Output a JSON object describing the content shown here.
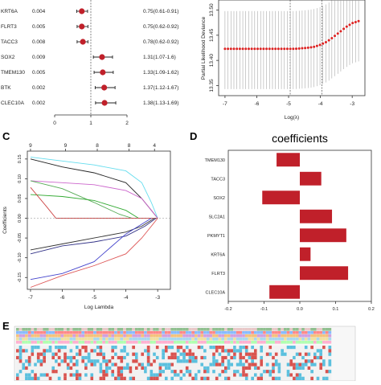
{
  "chart_data": [
    {
      "panel": "",
      "type": "scatter",
      "rows": [
        {
          "gene": "KRT6A",
          "p": "0.004",
          "hr": 0.75,
          "lo": 0.61,
          "hi": 0.91,
          "ci_text": "0.75(0.61-0.91)"
        },
        {
          "gene": "FLRT3",
          "p": "0.005",
          "hr": 0.75,
          "lo": 0.62,
          "hi": 0.92,
          "ci_text": "0.75(0.62-0.92)"
        },
        {
          "gene": "TACC3",
          "p": "0.008",
          "hr": 0.78,
          "lo": 0.62,
          "hi": 0.92,
          "ci_text": "0.78(0.62-0.92)"
        },
        {
          "gene": "SOX2",
          "p": "0.009",
          "hr": 1.31,
          "lo": 1.07,
          "hi": 1.6,
          "ci_text": "1.31(1.07-1.6)"
        },
        {
          "gene": "TMEM130",
          "p": "0.005",
          "hr": 1.33,
          "lo": 1.09,
          "hi": 1.62,
          "ci_text": "1.33(1.09-1.62)"
        },
        {
          "gene": "BTK",
          "p": "0.002",
          "hr": 1.37,
          "lo": 1.12,
          "hi": 1.67,
          "ci_text": "1.37(1.12-1.67)"
        },
        {
          "gene": "CLEC10A",
          "p": "0.002",
          "hr": 1.38,
          "lo": 1.13,
          "hi": 1.69,
          "ci_text": "1.38(1.13-1.69)"
        }
      ],
      "x_ticks": [
        "0",
        "1",
        "2"
      ],
      "xlim": [
        0,
        2
      ]
    },
    {
      "panel": "",
      "type": "line",
      "xlabel": "Log(λ)",
      "ylabel": "Partial Likelihood Deviance",
      "x_ticks": [
        "-7",
        "-6",
        "-5",
        "-4",
        "-3"
      ],
      "y_ticks": [
        "13.35",
        "13.40",
        "13.45",
        "13.50"
      ],
      "xlim": [
        -7.2,
        -2.6
      ],
      "ylim": [
        13.33,
        13.52
      ],
      "x": [
        -7.0,
        -6.8,
        -6.6,
        -6.4,
        -6.2,
        -6.0,
        -5.8,
        -5.6,
        -5.4,
        -5.2,
        -5.0,
        -4.8,
        -4.6,
        -4.4,
        -4.2,
        -4.0,
        -3.8,
        -3.6,
        -3.4,
        -3.2,
        -3.0,
        -2.8
      ],
      "y": [
        13.423,
        13.423,
        13.423,
        13.423,
        13.423,
        13.423,
        13.423,
        13.423,
        13.423,
        13.423,
        13.423,
        13.423,
        13.424,
        13.425,
        13.427,
        13.431,
        13.437,
        13.446,
        13.456,
        13.466,
        13.474,
        13.478
      ],
      "lambda_lines": [
        -4.95,
        -3.95
      ]
    },
    {
      "panel": "C",
      "type": "line",
      "xlabel": "Log Lambda",
      "ylabel": "Coefficients",
      "top_ticks": [
        "9",
        "9",
        "8",
        "8",
        "4"
      ],
      "x_ticks": [
        "-7",
        "-6",
        "-5",
        "-4",
        "-3"
      ],
      "y_ticks": [
        "-0.15",
        "-0.10",
        "-0.05",
        "0.00",
        "0.05",
        "0.10",
        "0.15"
      ],
      "xlim": [
        -7.1,
        -2.6
      ],
      "ylim": [
        -0.18,
        0.17
      ],
      "series": [
        {
          "color": "#222222",
          "values": [
            [
              -7,
              0.15
            ],
            [
              -6,
              0.13
            ],
            [
              -5,
              0.115
            ],
            [
              -4,
              0.09
            ],
            [
              -3.5,
              0.05
            ],
            [
              -3.2,
              0.02
            ],
            [
              -3,
              0
            ]
          ]
        },
        {
          "color": "#66ddee",
          "values": [
            [
              -7,
              0.155
            ],
            [
              -6,
              0.145
            ],
            [
              -5,
              0.135
            ],
            [
              -4,
              0.12
            ],
            [
              -3.5,
              0.09
            ],
            [
              -3.2,
              0.04
            ],
            [
              -3,
              0
            ]
          ]
        },
        {
          "color": "#cc66cc",
          "values": [
            [
              -7,
              0.095
            ],
            [
              -6,
              0.09
            ],
            [
              -5,
              0.085
            ],
            [
              -4,
              0.07
            ],
            [
              -3.5,
              0.05
            ],
            [
              -3.2,
              0.02
            ],
            [
              -3,
              0
            ]
          ]
        },
        {
          "color": "#55aa55",
          "values": [
            [
              -7,
              0.095
            ],
            [
              -6,
              0.075
            ],
            [
              -5,
              0.04
            ],
            [
              -4.2,
              0.01
            ],
            [
              -3.8,
              0
            ]
          ]
        },
        {
          "color": "#33aa33",
          "values": [
            [
              -7,
              0.06
            ],
            [
              -6,
              0.055
            ],
            [
              -5,
              0.045
            ],
            [
              -4,
              0.02
            ],
            [
              -3.6,
              0
            ]
          ]
        },
        {
          "color": "#cc4444",
          "values": [
            [
              -7,
              0.078
            ],
            [
              -6.5,
              0.03
            ],
            [
              -6.2,
              0
            ],
            [
              -3,
              0
            ]
          ]
        },
        {
          "color": "#333333",
          "values": [
            [
              -7,
              -0.08
            ],
            [
              -6,
              -0.065
            ],
            [
              -5,
              -0.05
            ],
            [
              -4,
              -0.035
            ],
            [
              -3.5,
              -0.02
            ],
            [
              -3.1,
              0
            ]
          ]
        },
        {
          "color": "#333388",
          "values": [
            [
              -7,
              -0.09
            ],
            [
              -6,
              -0.07
            ],
            [
              -5,
              -0.06
            ],
            [
              -4,
              -0.045
            ],
            [
              -3.4,
              -0.02
            ],
            [
              -3.05,
              0
            ]
          ]
        },
        {
          "color": "#4444cc",
          "values": [
            [
              -7,
              -0.155
            ],
            [
              -6,
              -0.14
            ],
            [
              -5,
              -0.11
            ],
            [
              -4.5,
              -0.075
            ],
            [
              -4,
              -0.04
            ],
            [
              -3.5,
              -0.015
            ],
            [
              -3.2,
              0
            ]
          ]
        },
        {
          "color": "#dd5555",
          "values": [
            [
              -7,
              -0.175
            ],
            [
              -6,
              -0.145
            ],
            [
              -5,
              -0.12
            ],
            [
              -4,
              -0.09
            ],
            [
              -3.5,
              -0.05
            ],
            [
              -3.2,
              -0.02
            ],
            [
              -3,
              0
            ]
          ]
        }
      ]
    },
    {
      "panel": "D",
      "type": "bar",
      "title": "coefficients",
      "categories": [
        "TMEM130",
        "TACC3",
        "SOX2",
        "SLC2A1",
        "PKMYT1",
        "KRT6A",
        "FLRT3",
        "CLEC10A"
      ],
      "values": [
        -0.065,
        0.06,
        -0.105,
        0.09,
        0.13,
        0.03,
        0.135,
        -0.085
      ],
      "x_ticks": [
        "-0.2",
        "-0.1",
        "0.0",
        "0.1",
        "0.2"
      ],
      "xlim": [
        -0.2,
        0.2
      ],
      "bar_color": "#c0202a"
    },
    {
      "panel": "E",
      "type": "heatmap"
    }
  ]
}
